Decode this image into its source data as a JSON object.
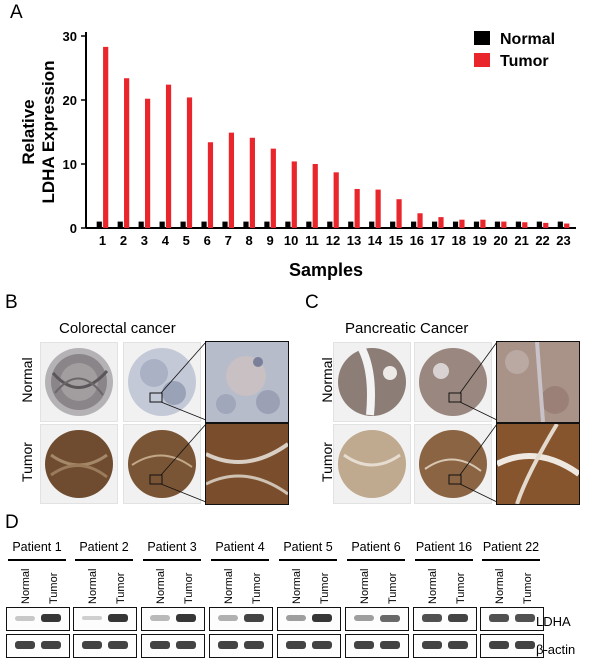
{
  "panel_labels": {
    "a": "A",
    "b": "B",
    "c": "C",
    "d": "D"
  },
  "chart_data": {
    "type": "bar",
    "title": "",
    "xlabel": "Samples",
    "ylabel_line1": "Relative",
    "ylabel_line2": "LDHA Expression",
    "ylim": [
      0,
      30
    ],
    "yticks": [
      "0",
      "10",
      "20",
      "30"
    ],
    "categories": [
      "1",
      "2",
      "3",
      "4",
      "5",
      "6",
      "7",
      "8",
      "9",
      "10",
      "11",
      "12",
      "13",
      "14",
      "15",
      "16",
      "17",
      "18",
      "19",
      "20",
      "21",
      "22",
      "23"
    ],
    "series": [
      {
        "name": "Normal",
        "color": "#000000",
        "values": [
          1,
          1,
          1,
          1,
          1,
          1,
          1,
          1,
          1,
          1,
          1,
          1,
          1,
          1,
          1,
          1,
          1,
          1,
          1,
          1,
          1,
          1,
          1
        ]
      },
      {
        "name": "Tumor",
        "color": "#e8262b",
        "values": [
          28.3,
          23.4,
          20.2,
          22.4,
          20.4,
          13.4,
          14.9,
          14.1,
          12.4,
          10.4,
          10.0,
          8.7,
          6.1,
          6.0,
          4.5,
          2.3,
          1.7,
          1.3,
          1.3,
          1.0,
          0.9,
          0.8,
          0.7
        ]
      }
    ],
    "legend_position": "top-right"
  },
  "panel_b": {
    "title": "Colorectal cancer",
    "row_normal": "Normal",
    "row_tumor": "Tumor"
  },
  "panel_c": {
    "title": "Pancreatic Cancer",
    "row_normal": "Normal",
    "row_tumor": "Tumor"
  },
  "panel_d": {
    "patients": [
      "Patient 1",
      "Patient 2",
      "Patient 3",
      "Patient 4",
      "Patient 5",
      "Patient 6",
      "Patient 16",
      "Patient 22"
    ],
    "lane_normal": "Normal",
    "lane_tumor": "Tumor",
    "protein_1": "LDHA",
    "protein_2": "β-actin",
    "ldha_normal_intensity": [
      0.25,
      0.2,
      0.35,
      0.4,
      0.5,
      0.5,
      0.85,
      0.85
    ],
    "ldha_tumor_intensity": [
      0.95,
      0.95,
      0.95,
      0.9,
      0.95,
      0.75,
      0.9,
      0.85
    ],
    "actin_intensity": [
      0.9,
      0.9,
      0.9,
      0.9,
      0.9,
      0.9,
      0.9,
      0.9
    ]
  },
  "colors": {
    "tumor": "#e8262b",
    "normal": "#000000",
    "ihc_brown": "#7a5233",
    "ihc_blue": "#a9b1c4"
  }
}
